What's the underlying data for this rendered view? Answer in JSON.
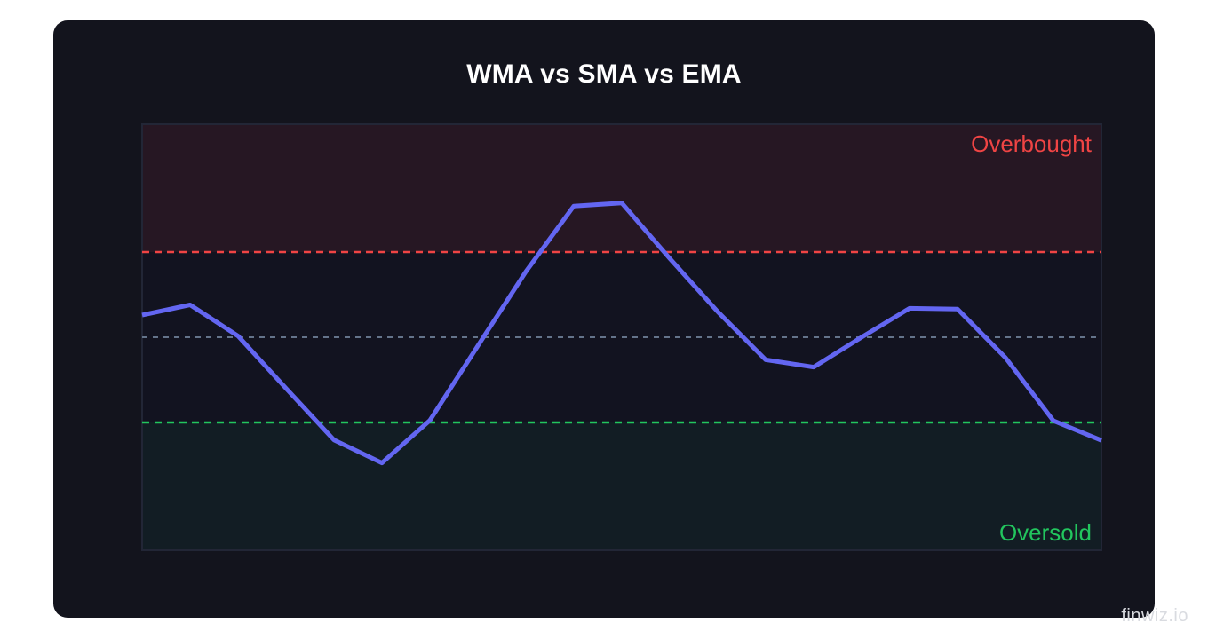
{
  "title": "WMA vs SMA vs EMA",
  "watermark": "finwiz.io",
  "colors": {
    "card_background": "#13141d",
    "line": "#6366f1",
    "overbought": "#ef4444",
    "oversold": "#22c55e",
    "midline": "#64748b"
  },
  "chart_data": {
    "type": "line",
    "title": "WMA vs SMA vs EMA",
    "xlabel": "",
    "ylabel": "",
    "ylim": [
      0,
      100
    ],
    "grid": false,
    "legend": "none",
    "zones": [
      {
        "label": "Overbought",
        "from": 70,
        "to": 100,
        "threshold": 70
      },
      {
        "label": "Oversold",
        "from": 0,
        "to": 30,
        "threshold": 30
      }
    ],
    "midline": 50,
    "x": [
      0,
      1,
      2,
      3,
      4,
      5,
      6,
      7,
      8,
      9,
      10,
      11,
      12,
      13,
      14,
      15,
      16,
      17,
      18,
      19,
      20
    ],
    "series": [
      {
        "values": [
          55.2,
          57.6,
          50.3,
          38.0,
          25.9,
          20.5,
          30.5,
          48.0,
          65.4,
          80.8,
          81.5,
          68.5,
          56.0,
          44.7,
          43.0,
          50.0,
          56.8,
          56.6,
          45.2,
          30.4,
          25.8
        ]
      }
    ]
  }
}
